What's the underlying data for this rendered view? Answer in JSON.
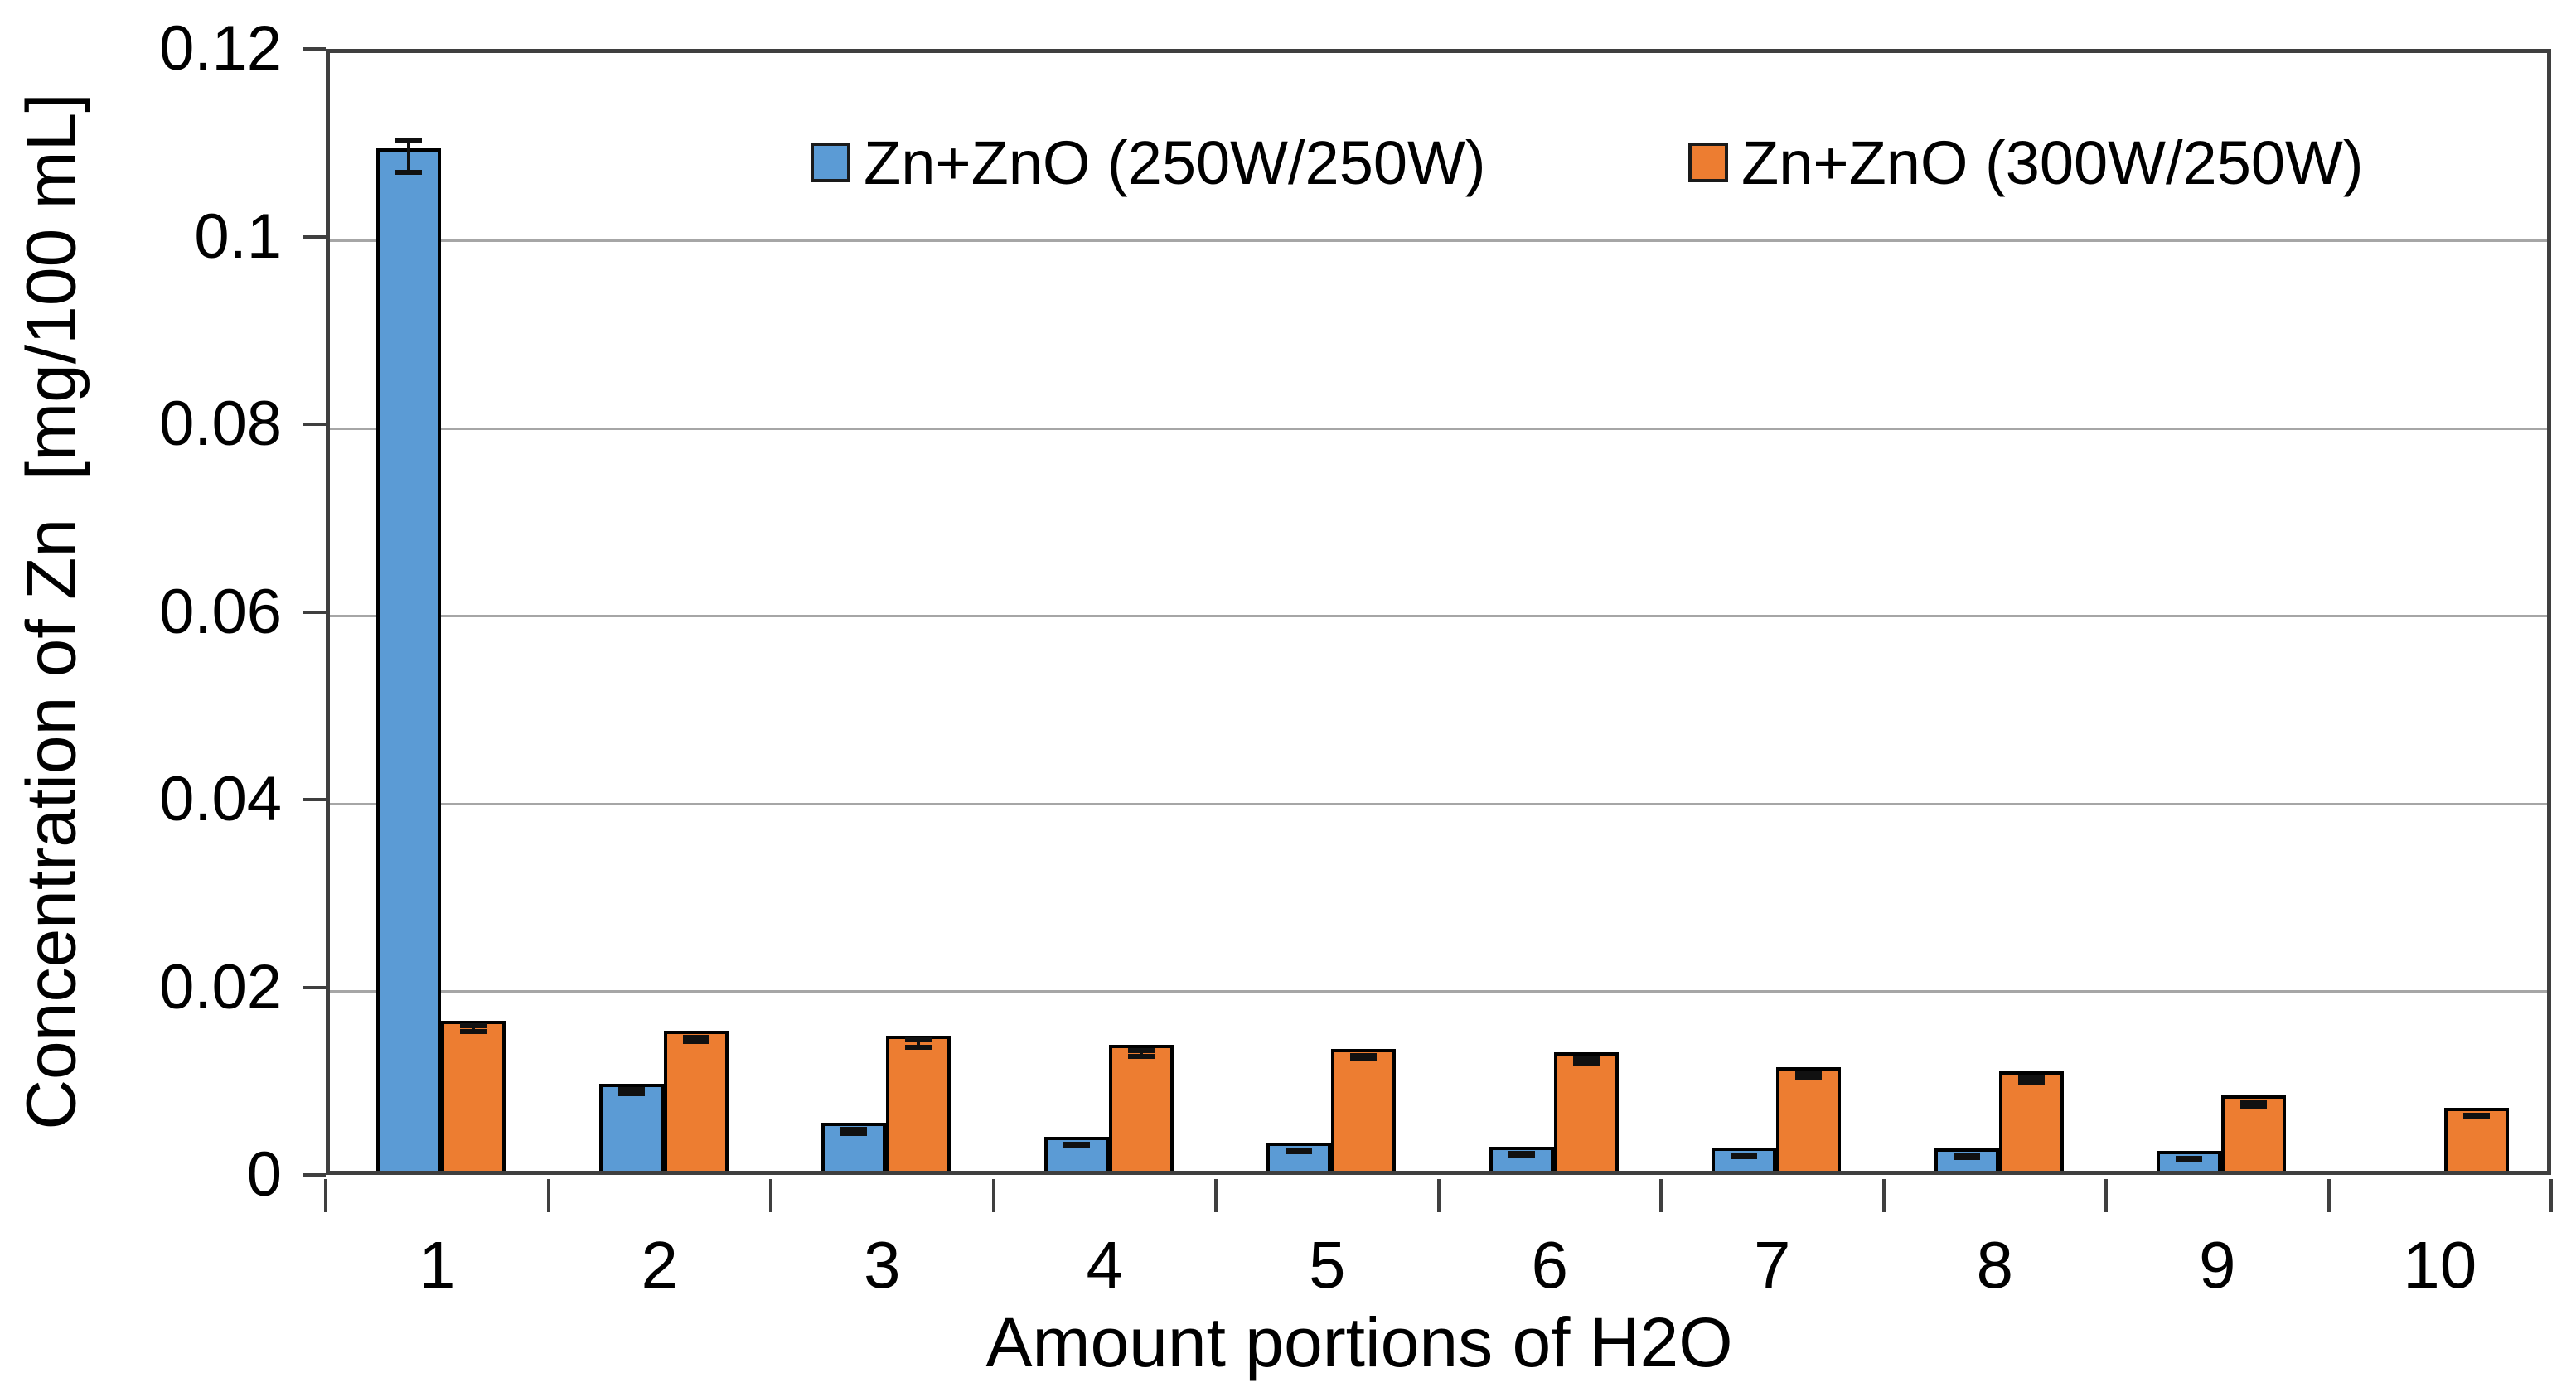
{
  "chart_data": {
    "type": "bar",
    "title": "",
    "xlabel": "Amount portions of H2O",
    "ylabel": "Concentration of Zn  [mg/100 mL]",
    "categories": [
      "1",
      "2",
      "3",
      "4",
      "5",
      "6",
      "7",
      "8",
      "9",
      "10"
    ],
    "series": [
      {
        "name": "Zn+ZnO (250W/250W)",
        "color": "#5B9BD5",
        "values": [
          0.109,
          0.0093,
          0.0051,
          0.0036,
          0.003,
          0.0026,
          0.0025,
          0.0024,
          0.0021,
          0
        ],
        "errors": [
          0.0017,
          0.0002,
          0.0002,
          0.0001,
          0.0001,
          0.0001,
          0.0001,
          0.0001,
          0.0001,
          0
        ]
      },
      {
        "name": "Zn+ZnO (300W/250W)",
        "color": "#ED7D31",
        "values": [
          0.016,
          0.0149,
          0.0144,
          0.0134,
          0.013,
          0.0126,
          0.011,
          0.0106,
          0.008,
          0.0067
        ],
        "errors": [
          0.0003,
          0.0002,
          0.0004,
          0.0003,
          0.0002,
          0.0002,
          0.0002,
          0.0003,
          0.0002,
          0.0001
        ]
      }
    ],
    "ylim": [
      0,
      0.12
    ],
    "ytick_values": [
      0,
      0.02,
      0.04,
      0.06,
      0.08,
      0.1,
      0.12
    ],
    "ytick_labels": [
      "0",
      "0.02",
      "0.04",
      "0.06",
      "0.08",
      "0.1",
      "0.12"
    ],
    "grid": true,
    "legend_position": "top-center",
    "error_bars": true
  },
  "colors": {
    "grid": "#a6a6a6",
    "axis": "#3f3f3f",
    "bar_border": "#000000",
    "text": "#000000",
    "background": "#ffffff"
  }
}
